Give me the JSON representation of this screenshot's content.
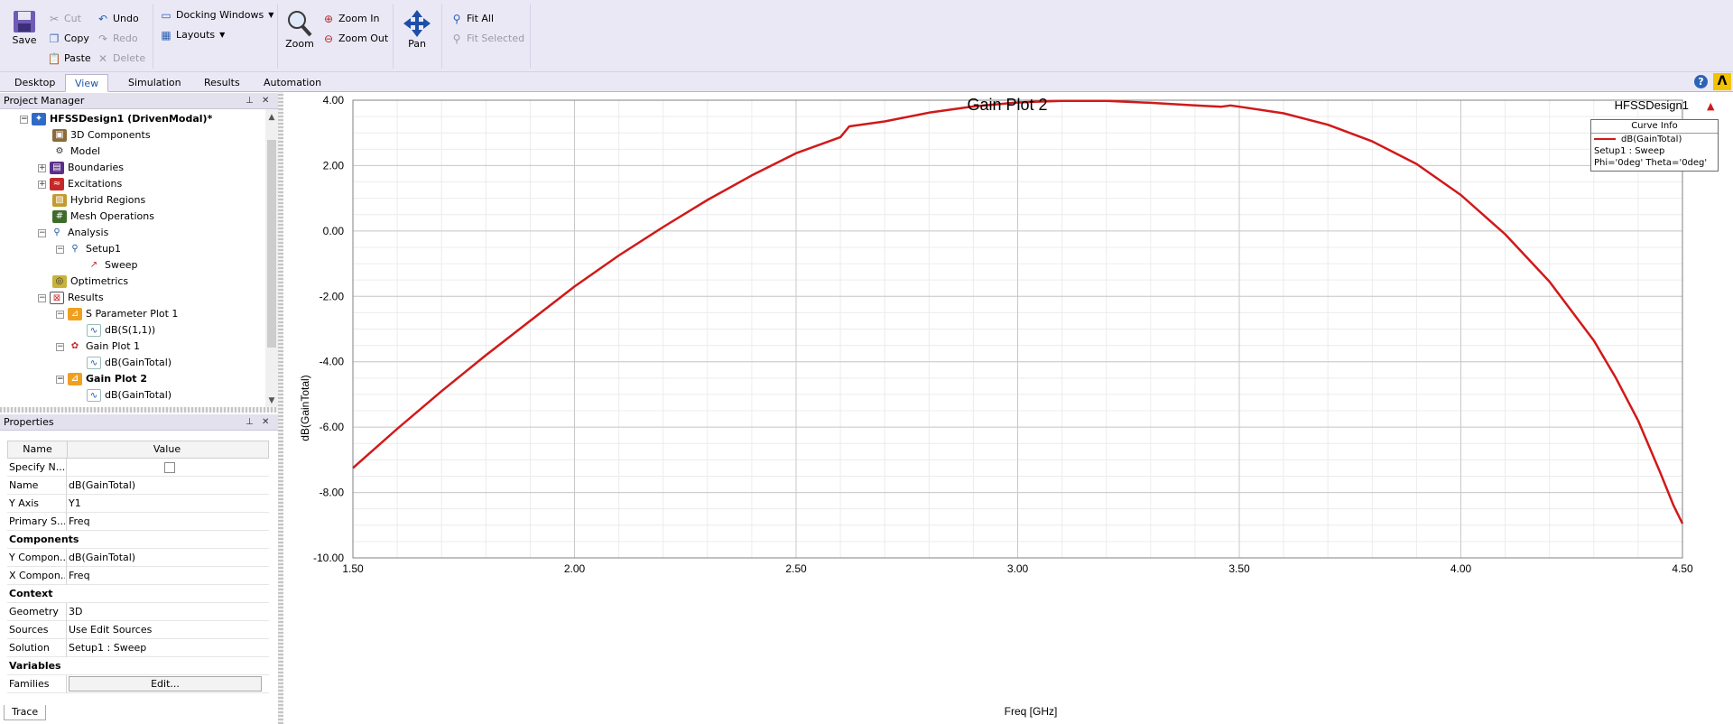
{
  "ribbon": {
    "save": "Save",
    "cut": "Cut",
    "copy": "Copy",
    "paste": "Paste",
    "undo": "Undo",
    "redo": "Redo",
    "delete": "Delete",
    "docking_windows": "Docking Windows",
    "layouts": "Layouts",
    "zoom": "Zoom",
    "zoom_in": "Zoom In",
    "zoom_out": "Zoom Out",
    "pan": "Pan",
    "fit_all": "Fit All",
    "fit_selected": "Fit Selected"
  },
  "tabs": [
    "Desktop",
    "View",
    "Simulation",
    "Results",
    "Automation"
  ],
  "active_tab": "View",
  "project_manager": {
    "title": "Project Manager",
    "tree": [
      {
        "label": "HFSSDesign1 (DrivenModal)*",
        "bold": true
      },
      {
        "label": "3D Components"
      },
      {
        "label": "Model"
      },
      {
        "label": "Boundaries"
      },
      {
        "label": "Excitations"
      },
      {
        "label": "Hybrid Regions"
      },
      {
        "label": "Mesh Operations"
      },
      {
        "label": "Analysis"
      },
      {
        "label": "Setup1"
      },
      {
        "label": "Sweep"
      },
      {
        "label": "Optimetrics"
      },
      {
        "label": "Results"
      },
      {
        "label": "S Parameter Plot 1"
      },
      {
        "label": "dB(S(1,1))"
      },
      {
        "label": "Gain Plot 1"
      },
      {
        "label": "dB(GainTotal)"
      },
      {
        "label": "Gain Plot 2",
        "bold": true
      },
      {
        "label": "dB(GainTotal)"
      }
    ]
  },
  "properties": {
    "title": "Properties",
    "col_name": "Name",
    "col_value": "Value",
    "rows": [
      {
        "name": "Specify N...",
        "value": ""
      },
      {
        "name": "Name",
        "value": "dB(GainTotal)"
      },
      {
        "name": "Y Axis",
        "value": "Y1"
      },
      {
        "name": "Primary S...",
        "value": "Freq"
      },
      {
        "name": "Components",
        "value": "",
        "section": true
      },
      {
        "name": "Y Compon...",
        "value": "dB(GainTotal)"
      },
      {
        "name": "X Compon...",
        "value": "Freq"
      },
      {
        "name": "Context",
        "value": "",
        "section": true
      },
      {
        "name": "Geometry",
        "value": "3D"
      },
      {
        "name": "Sources",
        "value": "Use Edit Sources"
      },
      {
        "name": "Solution",
        "value": "Setup1 : Sweep"
      },
      {
        "name": "Variables",
        "value": "",
        "section": true
      },
      {
        "name": "Families",
        "value": "Edit..."
      }
    ],
    "bottom_tab": "Trace"
  },
  "plot": {
    "design_name": "HFSSDesign1",
    "curve_info_title": "Curve Info",
    "curve_name": "dB(GainTotal)",
    "curve_setup": "Setup1 : Sweep",
    "curve_context": "Phi='0deg' Theta='0deg'",
    "curve_color": "#d11919"
  },
  "chart_data": {
    "type": "line",
    "title": "Gain Plot 2",
    "xlabel": "Freq [GHz]",
    "ylabel": "dB(GainTotal)",
    "xlim": [
      1.5,
      4.5
    ],
    "ylim": [
      -10.0,
      4.0
    ],
    "xticks": [
      "1.50",
      "2.00",
      "2.50",
      "3.00",
      "3.50",
      "4.00",
      "4.50"
    ],
    "yticks": [
      "4.00",
      "2.00",
      "0.00",
      "-2.00",
      "-4.00",
      "-6.00",
      "-8.00",
      "-10.00"
    ],
    "grid": true,
    "legend": "top-right",
    "series": [
      {
        "name": "dB(GainTotal)",
        "x": [
          1.5,
          1.6,
          1.7,
          1.8,
          1.9,
          2.0,
          2.1,
          2.2,
          2.3,
          2.4,
          2.5,
          2.6,
          2.62,
          2.7,
          2.8,
          2.9,
          3.0,
          3.1,
          3.2,
          3.3,
          3.4,
          3.46,
          3.48,
          3.5,
          3.6,
          3.7,
          3.8,
          3.9,
          4.0,
          4.1,
          4.2,
          4.3,
          4.35,
          4.4,
          4.45,
          4.48,
          4.5
        ],
        "y": [
          -7.25,
          -6.05,
          -4.9,
          -3.8,
          -2.75,
          -1.7,
          -0.75,
          0.12,
          0.95,
          1.7,
          2.38,
          2.87,
          3.2,
          3.35,
          3.62,
          3.81,
          3.93,
          3.98,
          3.98,
          3.92,
          3.84,
          3.8,
          3.84,
          3.8,
          3.6,
          3.25,
          2.74,
          2.05,
          1.1,
          -0.1,
          -1.55,
          -3.35,
          -4.5,
          -5.8,
          -7.4,
          -8.4,
          -8.95
        ]
      }
    ]
  }
}
